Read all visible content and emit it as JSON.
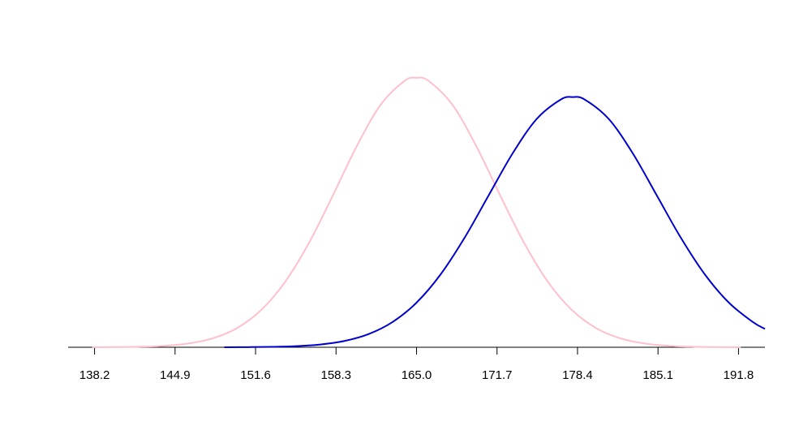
{
  "chart_data": {
    "type": "line",
    "xlim": [
      136,
      194
    ],
    "ylim": [
      0,
      0.068
    ],
    "xticks": [
      138.2,
      144.9,
      151.6,
      158.3,
      {
        "value": 165,
        "label": "165.0"
      },
      171.7,
      178.4,
      185.1,
      191.8
    ],
    "series": [
      {
        "color": "#ffc0cb",
        "x": [
          138,
          140,
          142,
          144,
          146,
          148,
          150,
          152,
          154,
          156,
          158,
          160,
          162,
          164,
          165,
          166,
          168,
          170,
          172,
          174,
          176,
          178,
          180,
          182,
          184,
          186,
          188,
          190,
          192
        ],
        "values": [
          1.1e-05,
          3.77e-05,
          0.000117,
          0.000332,
          0.000856,
          0.00201,
          0.00428,
          0.00831,
          0.01466,
          0.02353,
          0.03437,
          0.04566,
          0.05518,
          0.06066,
          0.06138,
          0.06066,
          0.05518,
          0.04566,
          0.03437,
          0.02353,
          0.01466,
          0.00831,
          0.00428,
          0.00201,
          0.000856,
          0.000332,
          0.000117,
          3.77e-05,
          1.1e-05
        ]
      },
      {
        "color": "#0000cd",
        "x": [
          149,
          151,
          153,
          155,
          157,
          159,
          161,
          163,
          165,
          167,
          169,
          171,
          173,
          175,
          177,
          178,
          179,
          181,
          183,
          185,
          187,
          189,
          191,
          193,
          194
        ],
        "values": [
          1.07e-05,
          3.35e-05,
          9.68e-05,
          0.000258,
          0.000633,
          0.00143,
          0.00299,
          0.00574,
          0.01016,
          0.01658,
          0.02494,
          0.03457,
          0.04416,
          0.05199,
          0.05641,
          0.05699,
          0.05641,
          0.05199,
          0.04416,
          0.03457,
          0.02494,
          0.01658,
          0.01016,
          0.00574,
          0.00418
        ]
      }
    ]
  }
}
